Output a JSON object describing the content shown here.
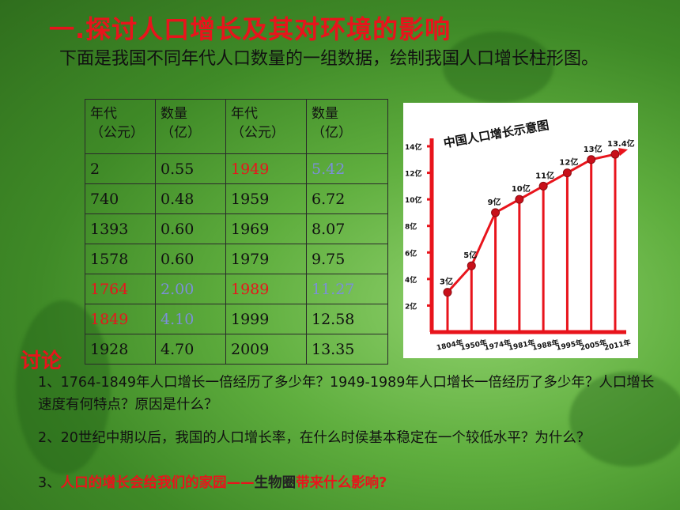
{
  "title": "一.探讨人口增长及其对环境的影响",
  "intro": "下面是我国不同年代人口数量的一组数据，绘制我国人口增长柱形图。",
  "table": {
    "headers": [
      {
        "line1": "年代",
        "line2": "（公元）"
      },
      {
        "line1": "数量",
        "line2": "（亿）"
      },
      {
        "line1": "年代",
        "line2": "（公元）"
      },
      {
        "line1": "数量",
        "line2": "（亿）"
      }
    ],
    "rows": [
      [
        "2",
        "0.55",
        "1949",
        "5.42"
      ],
      [
        "740",
        "0.48",
        "1959",
        "6.72"
      ],
      [
        "1393",
        "0.60",
        "1969",
        "8.07"
      ],
      [
        "1578",
        "0.60",
        "1979",
        "9.75"
      ],
      [
        "1764",
        "2.00",
        "1989",
        "11.27"
      ],
      [
        "1849",
        "4.10",
        "1999",
        "12.58"
      ],
      [
        "1928",
        "4.70",
        "2009",
        "13.35"
      ]
    ]
  },
  "colors": {
    "highlight_red": "#e8141c",
    "highlight_blue": "#7b8fd8"
  },
  "chart_data": {
    "type": "line",
    "title": "中国人口增长示意图",
    "x": [
      "1804年",
      "1950年",
      "1974年",
      "1981年",
      "1988年",
      "1995年",
      "2005年",
      "2011年"
    ],
    "values": [
      3,
      5,
      9,
      10,
      11,
      12,
      13,
      13.4
    ],
    "point_labels": [
      "3亿",
      "5亿",
      "9亿",
      "10亿",
      "11亿",
      "12亿",
      "13亿",
      "13.4亿"
    ],
    "y_ticks": [
      "2亿",
      "4亿",
      "6亿",
      "8亿",
      "10亿",
      "12亿",
      "14亿"
    ],
    "ylim": [
      0,
      14
    ]
  },
  "discuss": "讨论",
  "questions": {
    "q1": "1、1764-1849年人口增长一倍经历了多少年？1949-1989年人口增长一倍经历了多少年？人口增长速度有何特点？原因是什么？",
    "q2": "2、20世纪中期以后，我国的人口增长率，在什么时侯基本稳定在一个较低水平？为什么？",
    "q3_prefix": "3、",
    "q3_red1": "人口的增长会给我们的家园——",
    "q3_dark": "生物圈",
    "q3_red2": "带来什么影响?"
  }
}
